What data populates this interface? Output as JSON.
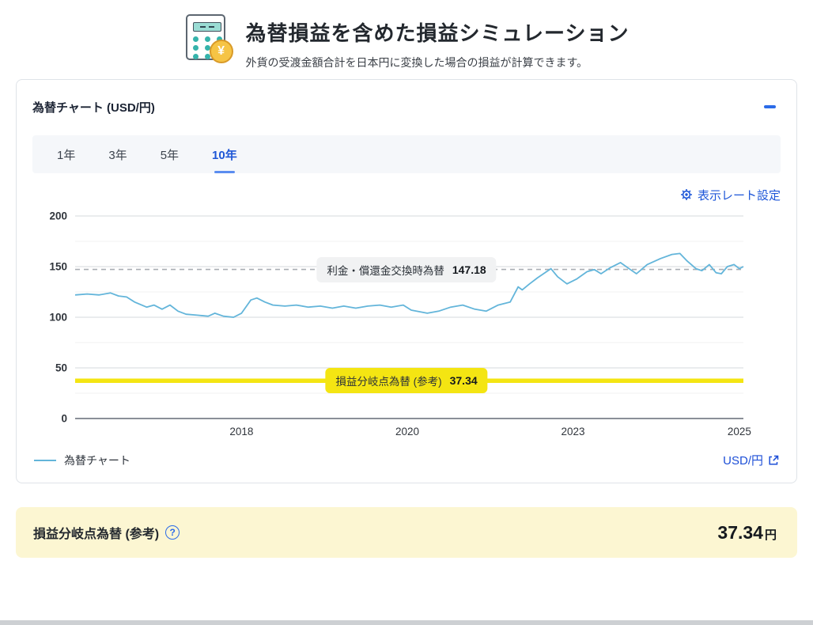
{
  "header": {
    "title": "為替損益を含めた損益シミュレーション",
    "subtitle": "外貨の受渡金額合計を日本円に変換した場合の損益が計算できます。",
    "icon": "calculator-with-yen-coin",
    "coin_symbol": "¥"
  },
  "card": {
    "title": "為替チャート (USD/円)",
    "collapse_icon": "minus",
    "tabs": [
      {
        "label": "1年",
        "active": false
      },
      {
        "label": "3年",
        "active": false
      },
      {
        "label": "5年",
        "active": false
      },
      {
        "label": "10年",
        "active": true
      }
    ],
    "settings_link": "表示レート設定",
    "legend": {
      "series_label": "為替チャート",
      "pair_link": "USD/円"
    }
  },
  "chart_data": {
    "type": "line",
    "title": "為替チャート (USD/円)",
    "ylim": [
      0,
      200
    ],
    "y_ticks": [
      0,
      50,
      100,
      150,
      200
    ],
    "y_minor_ticks": [
      25,
      75,
      125,
      175
    ],
    "grid": true,
    "legend_position": "bottom-left",
    "x_ticks": [
      {
        "label": "2018",
        "pos": 0.249
      },
      {
        "label": "2020",
        "pos": 0.497
      },
      {
        "label": "2023",
        "pos": 0.745
      },
      {
        "label": "2025",
        "pos": 0.994
      }
    ],
    "series": [
      {
        "name": "為替チャート",
        "color": "#63b5da",
        "points": [
          [
            0.0,
            122
          ],
          [
            0.018,
            123
          ],
          [
            0.036,
            122
          ],
          [
            0.053,
            124
          ],
          [
            0.065,
            121
          ],
          [
            0.077,
            120
          ],
          [
            0.089,
            115
          ],
          [
            0.107,
            110
          ],
          [
            0.118,
            112
          ],
          [
            0.13,
            108
          ],
          [
            0.142,
            112
          ],
          [
            0.154,
            106
          ],
          [
            0.166,
            103
          ],
          [
            0.183,
            102
          ],
          [
            0.199,
            101
          ],
          [
            0.209,
            104
          ],
          [
            0.222,
            101
          ],
          [
            0.237,
            100
          ],
          [
            0.249,
            104
          ],
          [
            0.263,
            117
          ],
          [
            0.272,
            119
          ],
          [
            0.284,
            115
          ],
          [
            0.296,
            112
          ],
          [
            0.314,
            111
          ],
          [
            0.331,
            112
          ],
          [
            0.349,
            110
          ],
          [
            0.367,
            111
          ],
          [
            0.385,
            109
          ],
          [
            0.402,
            111
          ],
          [
            0.42,
            109
          ],
          [
            0.438,
            111
          ],
          [
            0.456,
            112
          ],
          [
            0.473,
            110
          ],
          [
            0.491,
            112
          ],
          [
            0.503,
            107
          ],
          [
            0.527,
            104
          ],
          [
            0.544,
            106
          ],
          [
            0.562,
            110
          ],
          [
            0.58,
            112
          ],
          [
            0.598,
            108
          ],
          [
            0.615,
            106
          ],
          [
            0.633,
            112
          ],
          [
            0.651,
            115
          ],
          [
            0.663,
            130
          ],
          [
            0.669,
            127
          ],
          [
            0.68,
            133
          ],
          [
            0.692,
            139
          ],
          [
            0.712,
            148
          ],
          [
            0.722,
            140
          ],
          [
            0.736,
            133
          ],
          [
            0.751,
            138
          ],
          [
            0.766,
            145
          ],
          [
            0.777,
            147
          ],
          [
            0.787,
            143
          ],
          [
            0.801,
            149
          ],
          [
            0.816,
            154
          ],
          [
            0.831,
            147
          ],
          [
            0.84,
            143
          ],
          [
            0.856,
            152
          ],
          [
            0.876,
            158
          ],
          [
            0.893,
            162
          ],
          [
            0.905,
            163
          ],
          [
            0.915,
            156
          ],
          [
            0.929,
            148
          ],
          [
            0.938,
            146
          ],
          [
            0.949,
            152
          ],
          [
            0.959,
            144
          ],
          [
            0.967,
            143
          ],
          [
            0.976,
            150
          ],
          [
            0.986,
            152
          ],
          [
            0.994,
            148
          ],
          [
            1.0,
            150
          ]
        ]
      }
    ],
    "reference_lines": [
      {
        "label": "利金・償還金交換時為替",
        "value": 147.18,
        "value_text": "147.18",
        "style": "dashed",
        "color": "#a9adb3"
      },
      {
        "label": "損益分岐点為替 (参考)",
        "value": 37.34,
        "value_text": "37.34",
        "style": "solid",
        "color": "#f4e512"
      }
    ]
  },
  "summary_bar": {
    "label": "損益分岐点為替 (参考)",
    "help_icon": "question-circle",
    "value": "37.34",
    "unit": "円"
  },
  "colors": {
    "accent_blue": "#1d56d8",
    "line_blue": "#63b5da",
    "breakeven_yellow": "#f4e512",
    "summary_bg": "#fcf6d2"
  }
}
